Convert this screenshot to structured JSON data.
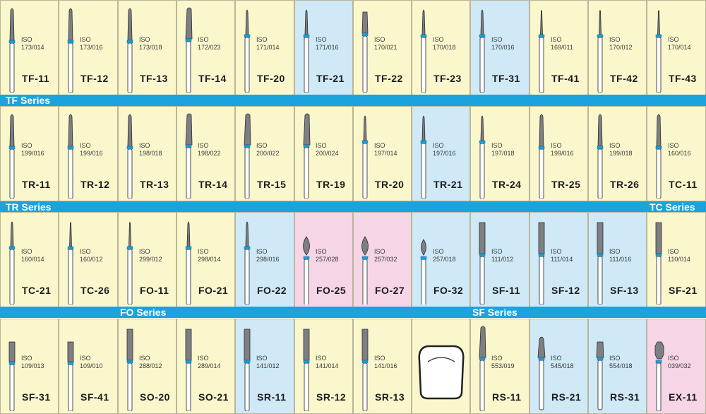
{
  "iso_prefix": "ISO",
  "colors": {
    "yellow": "#fbf7cd",
    "blue": "#cfe9f7",
    "pink": "#f6d5e6",
    "band": "#1aa3dc",
    "ring": "#1a9fd8"
  },
  "rows": [
    {
      "band": [
        "TF Series"
      ],
      "cells": [
        {
          "code": "TF-11",
          "iso": "173/014",
          "bg": "yellow",
          "shape": "taper-round"
        },
        {
          "code": "TF-12",
          "iso": "173/016",
          "bg": "yellow",
          "shape": "taper-round"
        },
        {
          "code": "TF-13",
          "iso": "173/018",
          "bg": "yellow",
          "shape": "taper-round"
        },
        {
          "code": "TF-14",
          "iso": "172/023",
          "bg": "yellow",
          "shape": "taper-long"
        },
        {
          "code": "TF-20",
          "iso": "171/014",
          "bg": "yellow",
          "shape": "taper-short"
        },
        {
          "code": "TF-21",
          "iso": "171/016",
          "bg": "blue",
          "shape": "taper-short"
        },
        {
          "code": "TF-22",
          "iso": "170/021",
          "bg": "yellow",
          "shape": "taper-flat"
        },
        {
          "code": "TF-23",
          "iso": "170/018",
          "bg": "yellow",
          "shape": "taper-short"
        },
        {
          "code": "TF-31",
          "iso": "170/016",
          "bg": "blue",
          "shape": "taper-short"
        },
        {
          "code": "TF-41",
          "iso": "169/011",
          "bg": "yellow",
          "shape": "needle"
        },
        {
          "code": "TF-42",
          "iso": "170/012",
          "bg": "yellow",
          "shape": "needle"
        },
        {
          "code": "TF-43",
          "iso": "170/014",
          "bg": "yellow",
          "shape": "needle"
        }
      ]
    },
    {
      "band": [
        "TR Series",
        "TC Series"
      ],
      "cells": [
        {
          "code": "TR-11",
          "iso": "199/016",
          "bg": "yellow",
          "shape": "taper-round"
        },
        {
          "code": "TR-12",
          "iso": "199/016",
          "bg": "yellow",
          "shape": "taper-round"
        },
        {
          "code": "TR-13",
          "iso": "198/018",
          "bg": "yellow",
          "shape": "taper-round"
        },
        {
          "code": "TR-14",
          "iso": "198/022",
          "bg": "yellow",
          "shape": "taper-long"
        },
        {
          "code": "TR-15",
          "iso": "200/022",
          "bg": "yellow",
          "shape": "taper-long"
        },
        {
          "code": "TR-19",
          "iso": "200/024",
          "bg": "yellow",
          "shape": "taper-long"
        },
        {
          "code": "TR-20",
          "iso": "197/014",
          "bg": "yellow",
          "shape": "taper-short"
        },
        {
          "code": "TR-21",
          "iso": "197/016",
          "bg": "blue",
          "shape": "taper-short"
        },
        {
          "code": "TR-24",
          "iso": "197/018",
          "bg": "yellow",
          "shape": "taper-short"
        },
        {
          "code": "TR-25",
          "iso": "199/016",
          "bg": "yellow",
          "shape": "taper-round"
        },
        {
          "code": "TR-26",
          "iso": "199/018",
          "bg": "yellow",
          "shape": "taper-round"
        },
        {
          "code": "TC-11",
          "iso": "160/016",
          "bg": "yellow",
          "shape": "taper-round"
        }
      ]
    },
    {
      "band": [
        "FO Series",
        "SF Series"
      ],
      "cells": [
        {
          "code": "TC-21",
          "iso": "160/014",
          "bg": "yellow",
          "shape": "taper-short"
        },
        {
          "code": "TC-26",
          "iso": "160/012",
          "bg": "yellow",
          "shape": "needle"
        },
        {
          "code": "FO-11",
          "iso": "299/012",
          "bg": "yellow",
          "shape": "needle"
        },
        {
          "code": "FO-21",
          "iso": "298/014",
          "bg": "yellow",
          "shape": "taper-short"
        },
        {
          "code": "FO-22",
          "iso": "298/016",
          "bg": "blue",
          "shape": "taper-short"
        },
        {
          "code": "FO-25",
          "iso": "257/028",
          "bg": "pink",
          "shape": "flame"
        },
        {
          "code": "FO-27",
          "iso": "257/032",
          "bg": "pink",
          "shape": "flame"
        },
        {
          "code": "FO-32",
          "iso": "257/018",
          "bg": "blue",
          "shape": "flame-small"
        },
        {
          "code": "SF-11",
          "iso": "111/012",
          "bg": "blue",
          "shape": "cylinder"
        },
        {
          "code": "SF-12",
          "iso": "111/014",
          "bg": "blue",
          "shape": "cylinder"
        },
        {
          "code": "SF-13",
          "iso": "111/016",
          "bg": "blue",
          "shape": "cylinder"
        },
        {
          "code": "SF-21",
          "iso": "110/014",
          "bg": "yellow",
          "shape": "cylinder"
        }
      ]
    },
    {
      "band": [],
      "cells": [
        {
          "code": "SF-31",
          "iso": "109/013",
          "bg": "yellow",
          "shape": "cylinder-short"
        },
        {
          "code": "SF-41",
          "iso": "109/010",
          "bg": "yellow",
          "shape": "cylinder-short"
        },
        {
          "code": "SO-20",
          "iso": "288/012",
          "bg": "yellow",
          "shape": "cylinder"
        },
        {
          "code": "SO-21",
          "iso": "289/014",
          "bg": "yellow",
          "shape": "cylinder"
        },
        {
          "code": "SR-11",
          "iso": "141/012",
          "bg": "blue",
          "shape": "cylinder"
        },
        {
          "code": "SR-12",
          "iso": "141/014",
          "bg": "yellow",
          "shape": "cylinder"
        },
        {
          "code": "SR-13",
          "iso": "141/016",
          "bg": "yellow",
          "shape": "cylinder"
        },
        {
          "code": "",
          "iso": "",
          "bg": "yellow",
          "shape": "tooth-outline"
        },
        {
          "code": "RS-11",
          "iso": "553/019",
          "bg": "yellow",
          "shape": "taper-long"
        },
        {
          "code": "RS-21",
          "iso": "545/018",
          "bg": "blue",
          "shape": "bell"
        },
        {
          "code": "RS-31",
          "iso": "554/018",
          "bg": "blue",
          "shape": "barrel"
        },
        {
          "code": "EX-11",
          "iso": "039/032",
          "bg": "pink",
          "shape": "octagon"
        }
      ]
    }
  ]
}
